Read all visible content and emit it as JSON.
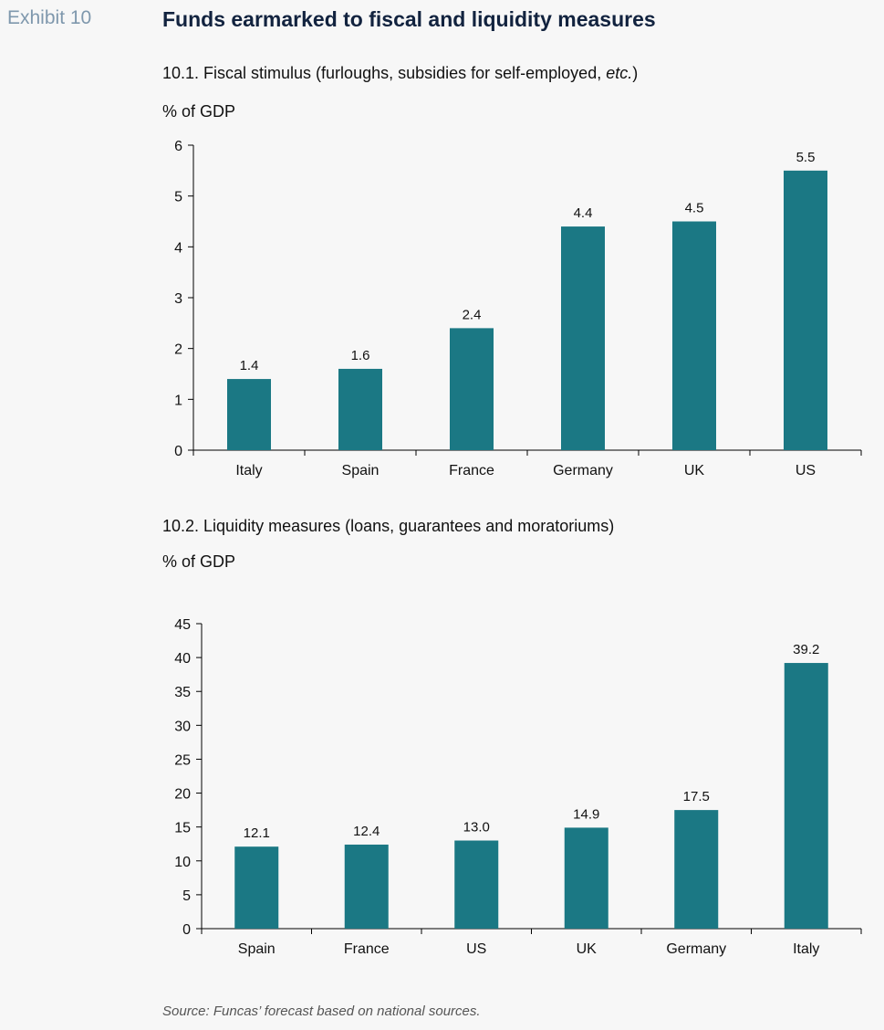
{
  "exhibit_label": "Exhibit 10",
  "title": "Funds earmarked to fiscal and liquidity measures",
  "source": "Source: Funcas’ forecast based on national sources.",
  "colors": {
    "bar": "#1b7884",
    "axis": "#000000",
    "title": "#12233f",
    "exhibit": "#7f98ad"
  },
  "chart_data": [
    {
      "type": "bar",
      "title_main": "10.1. Fiscal stimulus (furloughs, subsidies for self-employed, ",
      "title_italic": "etc.",
      "title_end": ")",
      "ylabel": "% of GDP",
      "xlabel": "",
      "categories": [
        "Italy",
        "Spain",
        "France",
        "Germany",
        "UK",
        "US"
      ],
      "values": [
        1.4,
        1.6,
        2.4,
        4.4,
        4.5,
        5.5
      ],
      "value_labels": [
        "1.4",
        "1.6",
        "2.4",
        "4.4",
        "4.5",
        "5.5"
      ],
      "ylim": [
        0,
        6
      ],
      "yticks": [
        0,
        1,
        2,
        3,
        4,
        5,
        6
      ],
      "grid": false,
      "legend": "none"
    },
    {
      "type": "bar",
      "title": "10.2. Liquidity measures (loans, guarantees and moratoriums)",
      "ylabel": "% of GDP",
      "xlabel": "",
      "categories": [
        "Spain",
        "France",
        "US",
        "UK",
        "Germany",
        "Italy"
      ],
      "values": [
        12.1,
        12.4,
        13.0,
        14.9,
        17.5,
        39.2
      ],
      "value_labels": [
        "12.1",
        "12.4",
        "13.0",
        "14.9",
        "17.5",
        "39.2"
      ],
      "ylim": [
        0,
        45
      ],
      "yticks": [
        0,
        5,
        10,
        15,
        20,
        25,
        30,
        35,
        40,
        45
      ],
      "grid": false,
      "legend": "none"
    }
  ]
}
